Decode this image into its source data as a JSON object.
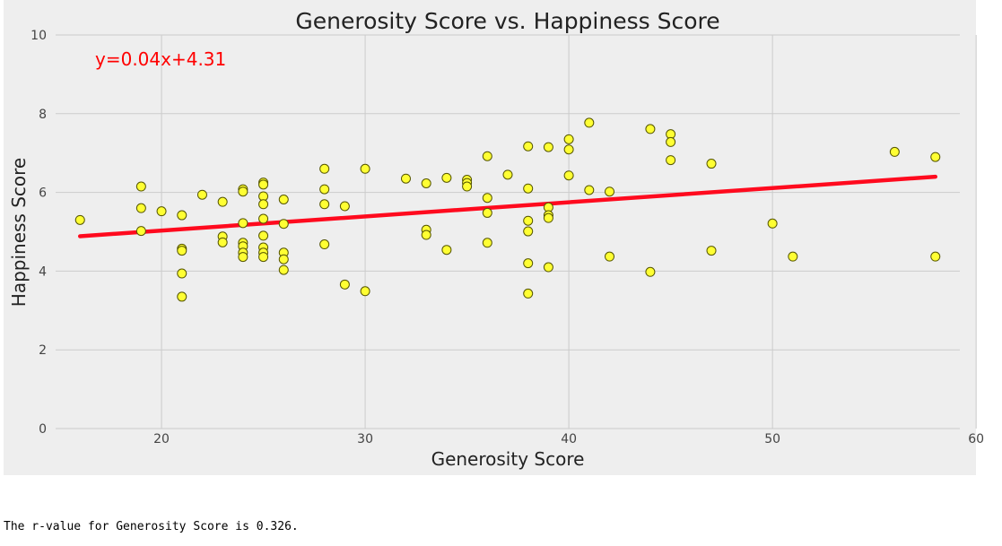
{
  "chart_data": {
    "type": "scatter",
    "title": "Generosity Score vs. Happiness Score",
    "xlabel": "Generosity Score",
    "ylabel": "Happiness Score",
    "xlim": [
      14.8,
      59.2
    ],
    "ylim": [
      0,
      10
    ],
    "xticks": [
      20,
      30,
      40,
      50,
      60
    ],
    "yticks": [
      0,
      2,
      4,
      6,
      8,
      10
    ],
    "grid": true,
    "annotation": "y=0.04x+4.31",
    "regression": {
      "slope": 0.036,
      "intercept": 4.31,
      "x_range": [
        16,
        58
      ]
    },
    "points": [
      [
        16,
        5.3
      ],
      [
        19,
        6.15
      ],
      [
        19,
        5.6
      ],
      [
        19,
        5.02
      ],
      [
        20,
        5.52
      ],
      [
        21,
        5.42
      ],
      [
        21,
        4.57
      ],
      [
        21,
        4.52
      ],
      [
        21,
        3.94
      ],
      [
        21,
        3.35
      ],
      [
        22,
        5.94
      ],
      [
        23,
        5.76
      ],
      [
        23,
        4.88
      ],
      [
        23,
        4.73
      ],
      [
        24,
        6.08
      ],
      [
        24,
        6.02
      ],
      [
        24,
        5.22
      ],
      [
        24,
        4.72
      ],
      [
        24,
        4.63
      ],
      [
        24,
        4.47
      ],
      [
        24,
        4.36
      ],
      [
        25,
        6.25
      ],
      [
        25,
        6.2
      ],
      [
        25,
        5.9
      ],
      [
        25,
        5.7
      ],
      [
        25,
        5.33
      ],
      [
        25,
        4.9
      ],
      [
        25,
        4.6
      ],
      [
        25,
        4.47
      ],
      [
        25,
        4.36
      ],
      [
        26,
        5.82
      ],
      [
        26,
        5.2
      ],
      [
        26,
        4.47
      ],
      [
        26,
        4.3
      ],
      [
        26,
        4.03
      ],
      [
        28,
        6.6
      ],
      [
        28,
        6.08
      ],
      [
        28,
        5.7
      ],
      [
        28,
        4.68
      ],
      [
        29,
        5.65
      ],
      [
        29,
        3.66
      ],
      [
        30,
        6.6
      ],
      [
        30,
        3.49
      ],
      [
        32,
        6.35
      ],
      [
        33,
        6.23
      ],
      [
        33,
        5.05
      ],
      [
        33,
        4.92
      ],
      [
        34,
        6.37
      ],
      [
        34,
        4.54
      ],
      [
        35,
        6.32
      ],
      [
        35,
        6.24
      ],
      [
        35,
        6.15
      ],
      [
        36,
        6.92
      ],
      [
        36,
        5.86
      ],
      [
        36,
        5.48
      ],
      [
        36,
        4.72
      ],
      [
        37,
        6.45
      ],
      [
        38,
        7.17
      ],
      [
        38,
        6.1
      ],
      [
        38,
        5.28
      ],
      [
        38,
        5.01
      ],
      [
        38,
        4.2
      ],
      [
        38,
        3.43
      ],
      [
        39,
        7.15
      ],
      [
        39,
        5.62
      ],
      [
        39,
        5.42
      ],
      [
        39,
        5.35
      ],
      [
        39,
        4.1
      ],
      [
        40,
        7.35
      ],
      [
        40,
        7.09
      ],
      [
        40,
        6.43
      ],
      [
        41,
        7.77
      ],
      [
        41,
        6.06
      ],
      [
        42,
        6.02
      ],
      [
        42,
        4.37
      ],
      [
        44,
        7.61
      ],
      [
        44,
        3.98
      ],
      [
        45,
        7.48
      ],
      [
        45,
        7.28
      ],
      [
        45,
        6.82
      ],
      [
        47,
        6.73
      ],
      [
        47,
        4.52
      ],
      [
        50,
        5.21
      ],
      [
        51,
        4.37
      ],
      [
        56,
        7.03
      ],
      [
        58,
        6.9
      ],
      [
        58,
        4.37
      ]
    ],
    "colors": {
      "point_fill": "#ffff33",
      "point_stroke": "#555500",
      "line": "#ff0a1e",
      "annotation": "#ff0000",
      "background": "#eeeeee",
      "grid": "#cbcbcb"
    }
  },
  "output": {
    "text": "The r-value for Generosity Score is 0.326."
  }
}
